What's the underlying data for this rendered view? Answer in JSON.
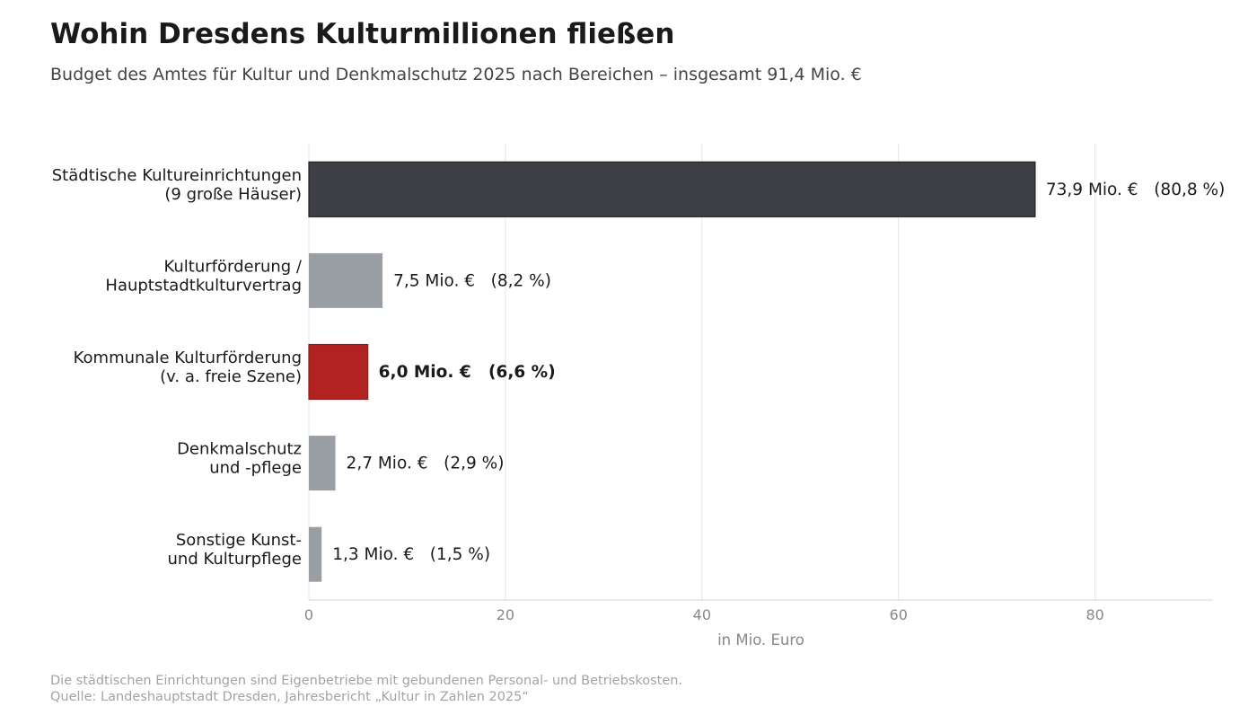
{
  "header": {
    "title": "Wohin Dresdens Kulturmillionen fließen",
    "subtitle": "Budget des Amtes für Kultur und Denkmalschutz 2025 nach Bereichen – insgesamt 91,4 Mio. €"
  },
  "footer": {
    "note": "Die städtischen Einrichtungen sind Eigenbetriebe mit gebundenen Personal- und Betriebskosten.",
    "source": "Quelle: Landeshauptstadt Dresden, Jahresbericht „Kultur in Zahlen 2025“"
  },
  "colors": {
    "highlight": "#b22222",
    "dark": "#3d3f44",
    "neutral": "#9a9ea5",
    "grid": "#e6e6e6",
    "axis_text": "#888888"
  },
  "chart_data": {
    "type": "bar",
    "orientation": "horizontal",
    "xlabel": "in Mio. Euro",
    "xlim": [
      0,
      92
    ],
    "xticks": [
      0,
      20,
      40,
      60,
      80
    ],
    "grid": true,
    "categories": [
      [
        "Städtische Kultureinrichtungen",
        "(9 große Häuser)"
      ],
      [
        "Kulturförderung /",
        "Hauptstadtkulturvertrag"
      ],
      [
        "Kommunale Kulturförderung",
        "(v. a. freie Szene)"
      ],
      [
        "Denkmalschutz",
        "und -pflege"
      ],
      [
        "Sonstige Kunst-",
        "und Kulturpflege"
      ]
    ],
    "values": [
      73.9,
      7.5,
      6.0,
      2.7,
      1.3
    ],
    "value_labels": [
      "73,9 Mio. €   (80,8 %)",
      "7,5 Mio. €   (8,2 %)",
      "6,0 Mio. €   (6,6 %)",
      "2,7 Mio. €   (2,9 %)",
      "1,3 Mio. €   (1,5 %)"
    ],
    "bar_styles": [
      "dark",
      "neutral",
      "highlight",
      "neutral",
      "neutral"
    ],
    "bold_labels": [
      false,
      false,
      true,
      false,
      false
    ]
  }
}
